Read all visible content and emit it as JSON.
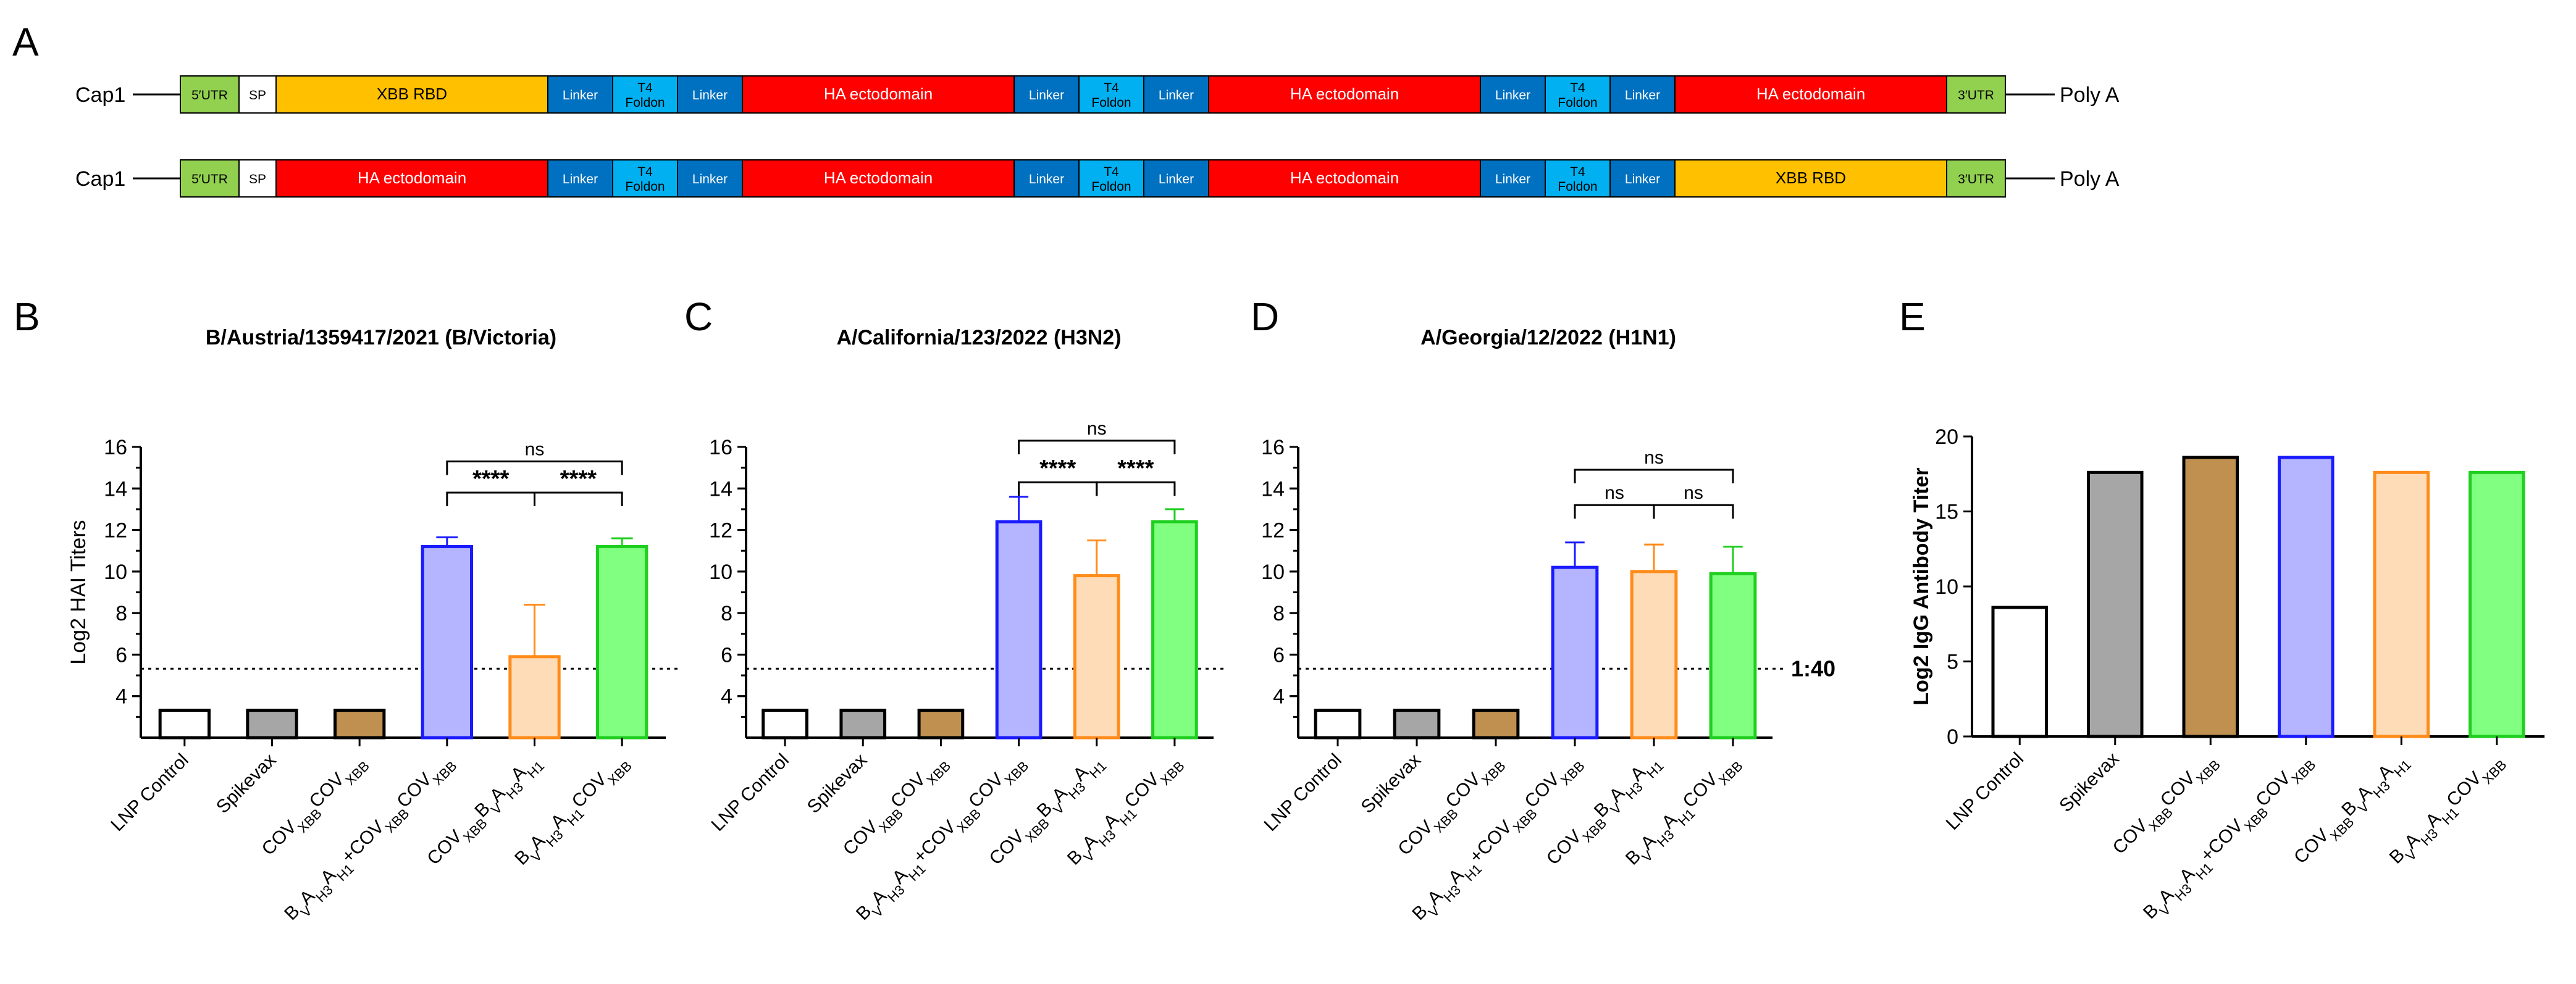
{
  "panel_a": {
    "letter": "A",
    "cap": "Cap1",
    "polya": "Poly A",
    "constructs": [
      {
        "segments": [
          {
            "label": "5′UTR",
            "kind": "utr"
          },
          {
            "label": "SP",
            "kind": "sp"
          },
          {
            "label": "XBB RBD",
            "kind": "rbd"
          },
          {
            "label": "Linker",
            "kind": "linker"
          },
          {
            "label": "T4\nFoldon",
            "kind": "t4"
          },
          {
            "label": "Linker",
            "kind": "linker"
          },
          {
            "label": "HA ectodomain",
            "kind": "ha"
          },
          {
            "label": "Linker",
            "kind": "linker"
          },
          {
            "label": "T4\nFoldon",
            "kind": "t4"
          },
          {
            "label": "Linker",
            "kind": "linker"
          },
          {
            "label": "HA ectodomain",
            "kind": "ha"
          },
          {
            "label": "Linker",
            "kind": "linker"
          },
          {
            "label": "T4\nFoldon",
            "kind": "t4"
          },
          {
            "label": "Linker",
            "kind": "linker"
          },
          {
            "label": "HA ectodomain",
            "kind": "ha"
          },
          {
            "label": "3′UTR",
            "kind": "utr"
          }
        ]
      },
      {
        "segments": [
          {
            "label": "5′UTR",
            "kind": "utr"
          },
          {
            "label": "SP",
            "kind": "sp"
          },
          {
            "label": "HA ectodomain",
            "kind": "ha"
          },
          {
            "label": "Linker",
            "kind": "linker"
          },
          {
            "label": "T4\nFoldon",
            "kind": "t4"
          },
          {
            "label": "Linker",
            "kind": "linker"
          },
          {
            "label": "HA ectodomain",
            "kind": "ha"
          },
          {
            "label": "Linker",
            "kind": "linker"
          },
          {
            "label": "T4\nFoldon",
            "kind": "t4"
          },
          {
            "label": "Linker",
            "kind": "linker"
          },
          {
            "label": "HA ectodomain",
            "kind": "ha"
          },
          {
            "label": "Linker",
            "kind": "linker"
          },
          {
            "label": "T4\nFoldon",
            "kind": "t4"
          },
          {
            "label": "Linker",
            "kind": "linker"
          },
          {
            "label": "XBB RBD",
            "kind": "rbd"
          },
          {
            "label": "3′UTR",
            "kind": "utr"
          }
        ]
      }
    ],
    "colors": {
      "utr": "#92d050",
      "sp": "#ffffff",
      "rbd": "#ffc000",
      "linker": "#0070c0",
      "t4": "#00b0f0",
      "ha": "#ff0000"
    }
  },
  "chart_data": [
    {
      "letter": "B",
      "type": "bar",
      "title": "B/Austria/1359417/2021 (B/Victoria)",
      "ylabel": "Log2 HAI Titers",
      "ylim": [
        2,
        16
      ],
      "yticks": [
        "4",
        "6",
        "8",
        "10",
        "12",
        "14",
        "16"
      ],
      "threshold": 5.32,
      "threshold_label": "",
      "categories": [
        "LNP Control",
        "Spikevax",
        "COVXBBCOVXBB",
        "BVAH3AH1+COVXBBCOVXBB",
        "COVXBBBVAH3AH1",
        "BVAH3AH1COVXBB"
      ],
      "values": [
        3.32,
        3.32,
        3.32,
        11.2,
        5.9,
        11.2
      ],
      "errors": [
        0,
        0,
        0,
        0.45,
        2.5,
        0.4
      ],
      "sig": [
        {
          "from": 3,
          "to": 4,
          "label": "****",
          "level": 1
        },
        {
          "from": 4,
          "to": 5,
          "label": "****",
          "level": 1
        },
        {
          "from": 3,
          "to": 5,
          "label": "ns",
          "level": 2
        }
      ]
    },
    {
      "letter": "C",
      "type": "bar",
      "title": "A/California/123/2022 (H3N2)",
      "ylabel": "",
      "ylim": [
        2,
        16
      ],
      "yticks": [
        "4",
        "6",
        "8",
        "10",
        "12",
        "14",
        "16"
      ],
      "threshold": 5.32,
      "threshold_label": "",
      "categories": [
        "LNP Control",
        "Spikevax",
        "COVXBBCOVXBB",
        "BVAH3AH1+COVXBBCOVXBB",
        "COVXBBBVAH3AH1",
        "BVAH3AH1COVXBB"
      ],
      "values": [
        3.32,
        3.32,
        3.32,
        12.4,
        9.8,
        12.4
      ],
      "errors": [
        0,
        0,
        0,
        1.2,
        1.7,
        0.6
      ],
      "sig": [
        {
          "from": 3,
          "to": 4,
          "label": "****",
          "level": 1
        },
        {
          "from": 4,
          "to": 5,
          "label": "****",
          "level": 1
        },
        {
          "from": 3,
          "to": 5,
          "label": "ns",
          "level": 2
        }
      ]
    },
    {
      "letter": "D",
      "type": "bar",
      "title": "A/Georgia/12/2022 (H1N1)",
      "ylabel": "",
      "ylim": [
        2,
        16
      ],
      "yticks": [
        "4",
        "6",
        "8",
        "10",
        "12",
        "14",
        "16"
      ],
      "threshold": 5.32,
      "threshold_label": "1:40",
      "categories": [
        "LNP Control",
        "Spikevax",
        "COVXBBCOVXBB",
        "BVAH3AH1+COVXBBCOVXBB",
        "COVXBBBVAH3AH1",
        "BVAH3AH1COVXBB"
      ],
      "values": [
        3.32,
        3.32,
        3.32,
        10.2,
        10.0,
        9.9
      ],
      "errors": [
        0,
        0,
        0,
        1.2,
        1.3,
        1.3
      ],
      "sig": [
        {
          "from": 3,
          "to": 4,
          "label": "ns",
          "level": 1
        },
        {
          "from": 4,
          "to": 5,
          "label": "ns",
          "level": 1
        },
        {
          "from": 3,
          "to": 5,
          "label": "ns",
          "level": 2
        }
      ]
    },
    {
      "letter": "E",
      "type": "bar",
      "title": "",
      "ylabel": "Log2 IgG Antibody Titer",
      "ylim": [
        0,
        20
      ],
      "yticks": [
        "0",
        "5",
        "10",
        "15",
        "20"
      ],
      "threshold": null,
      "threshold_label": "",
      "categories": [
        "LNP Control",
        "Spikevax",
        "COVXBBCOVXBB",
        "BVAH3AH1+COVXBBCOVXBB",
        "COVXBBBVAH3AH1",
        "BVAH3AH1COVXBB"
      ],
      "values": [
        8.6,
        17.6,
        18.6,
        18.6,
        17.6,
        17.6
      ],
      "errors": [
        0,
        0,
        0,
        0,
        0,
        0
      ],
      "sig": []
    }
  ],
  "bar_styles": [
    {
      "fill": "#ffffff",
      "stroke": "#000000"
    },
    {
      "fill": "#a6a6a6",
      "stroke": "#000000"
    },
    {
      "fill": "#c09050",
      "stroke": "#000000"
    },
    {
      "fill": "#b4b4ff",
      "stroke": "#1a1aff"
    },
    {
      "fill": "#ffdcb8",
      "stroke": "#ff8c1a"
    },
    {
      "fill": "#80ff80",
      "stroke": "#1fcf1f"
    }
  ]
}
